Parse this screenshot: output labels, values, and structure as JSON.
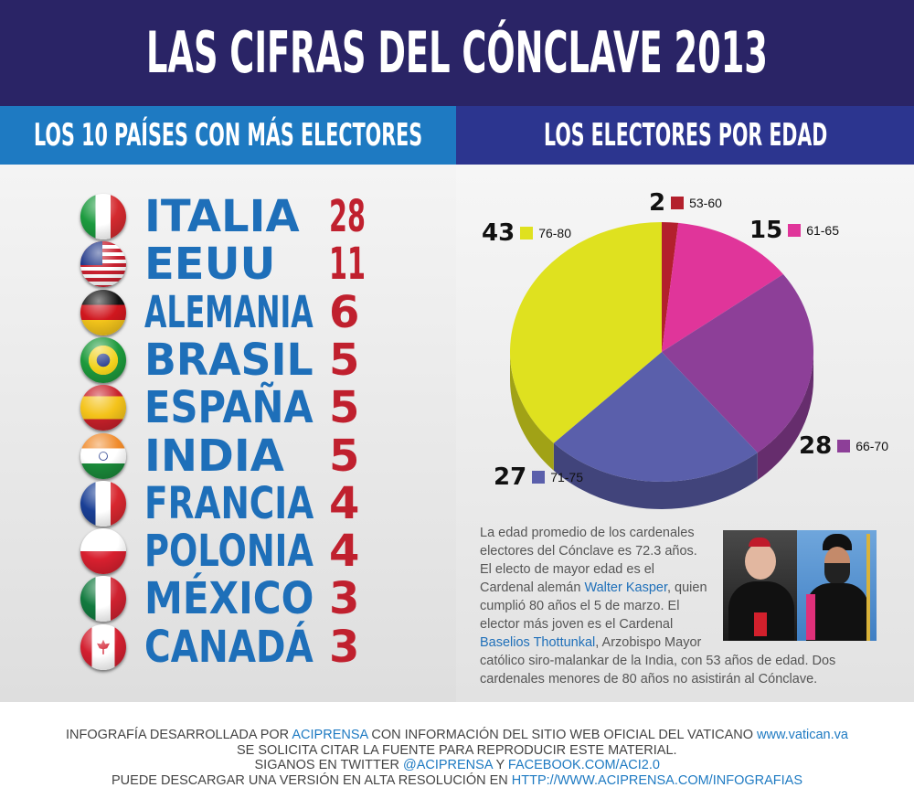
{
  "title": "LAS CIFRAS DEL CÓNCLAVE 2013",
  "left_header": "LOS 10 PAÍSES CON MÁS ELECTORES",
  "right_header": "LOS ELECTORES POR EDAD",
  "countries": [
    {
      "name": "ITALIA",
      "count": "28",
      "flag": "it"
    },
    {
      "name": "EEUU",
      "count": "11",
      "flag": "us"
    },
    {
      "name": "ALEMANIA",
      "count": "6",
      "flag": "de"
    },
    {
      "name": "BRASIL",
      "count": "5",
      "flag": "br"
    },
    {
      "name": "ESPAÑA",
      "count": "5",
      "flag": "es"
    },
    {
      "name": "INDIA",
      "count": "5",
      "flag": "in"
    },
    {
      "name": "FRANCIA",
      "count": "4",
      "flag": "fr"
    },
    {
      "name": "POLONIA",
      "count": "4",
      "flag": "pl"
    },
    {
      "name": "MÉXICO",
      "count": "3",
      "flag": "mx"
    },
    {
      "name": "CANADÁ",
      "count": "3",
      "flag": "ca"
    }
  ],
  "chart_data": {
    "type": "pie",
    "title": "LOS ELECTORES POR EDAD",
    "categories": [
      "53-60",
      "61-65",
      "66-70",
      "71-75",
      "76-80"
    ],
    "values": [
      2,
      15,
      28,
      27,
      43
    ],
    "labels": [
      "2",
      "15",
      "28",
      "27",
      "43"
    ],
    "colors": [
      "#b3202c",
      "#e0359a",
      "#8d3f98",
      "#5a5fab",
      "#dfe11f"
    ]
  },
  "description": {
    "p1": "La edad promedio de los cardenales electores del Cónclave es 72.3 años. El electo de mayor edad es el Cardenal alemán ",
    "link1": "Walter Kasper",
    "p2": ", quien cumplió 80 años el 5 de marzo. El elector más joven es el Cardenal ",
    "link2": "Baselios Thottunkal",
    "p3": ", Arzobispo Mayor católico siro-malankar de la India, con 53 años de edad. Dos cardenales menores de 80 años no asistirán al Cónclave."
  },
  "footer": {
    "l1a": "INFOGRAFÍA DESARROLLADA POR ",
    "l1link": "ACIPRENSA",
    "l1b": " CON INFORMACIÓN DEL SITIO WEB OFICIAL DEL VATICANO ",
    "l1link2": "www.vatican.va",
    "l2": "SE SOLICITA CITAR LA FUENTE PARA REPRODUCIR ESTE MATERIAL.",
    "l3a": "SIGANOS EN TWITTER ",
    "l3link": "@ACIPRENSA",
    "l3b": " Y ",
    "l3link2": "FACEBOOK.COM/ACI2.0",
    "l4a": "PUEDE DESCARGAR UNA VERSIÓN EN ALTA RESOLUCIÓN EN ",
    "l4link": "HTTP://WWW.ACIPRENSA.COM/INFOGRAFIAS"
  }
}
